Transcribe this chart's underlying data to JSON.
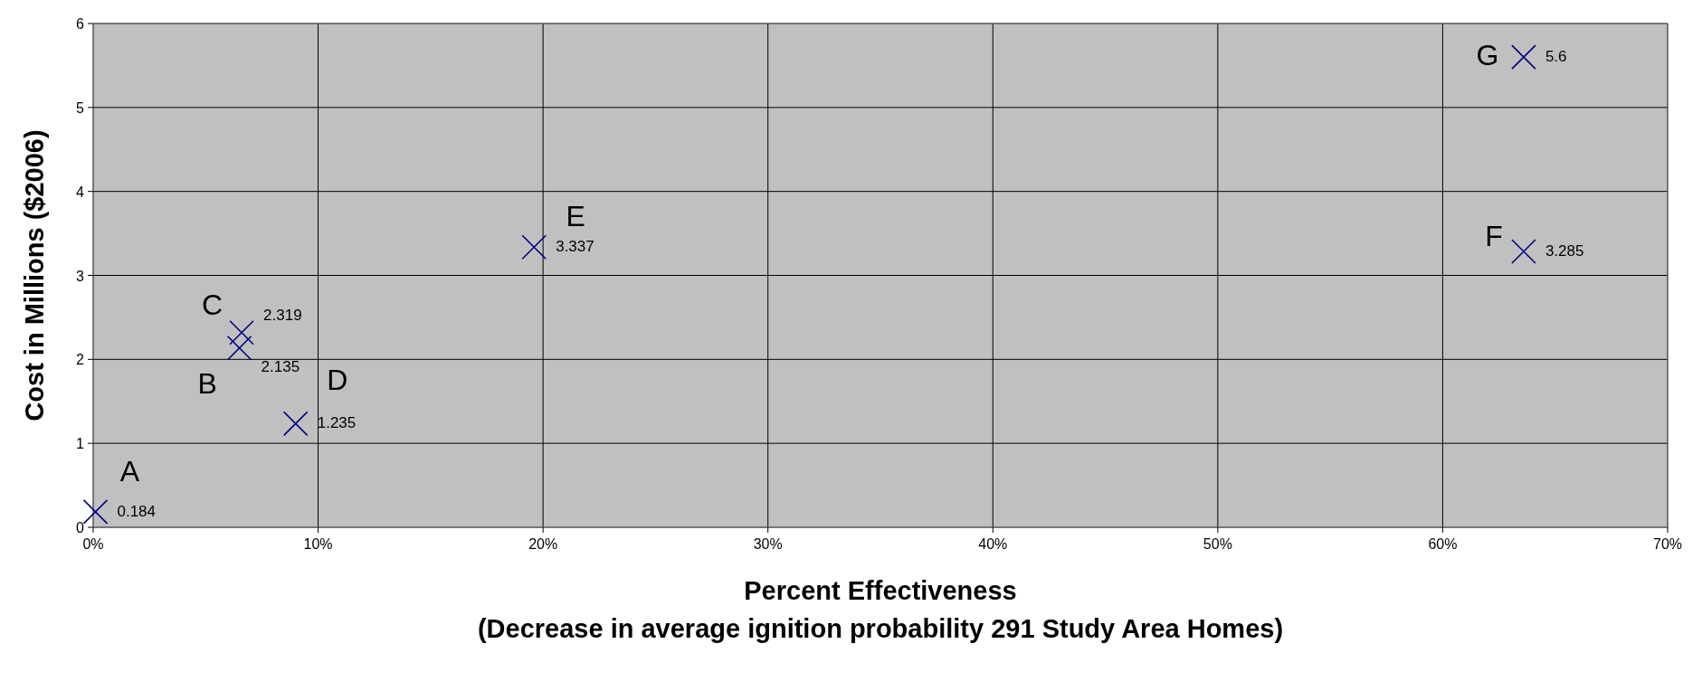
{
  "chart_data": {
    "type": "scatter",
    "xlabel": "Percent Effectiveness\n(Decrease in average ignition probability 291 Study Area Homes)",
    "ylabel": "Cost in Millions ($2006)",
    "series": [
      {
        "color": "#000080",
        "x": [
          0.1,
          6.5,
          6.6,
          9.0,
          19.6,
          63.6,
          63.6
        ],
        "values": [
          0.184,
          2.135,
          2.319,
          1.235,
          3.337,
          3.285,
          5.6
        ]
      }
    ],
    "data_labels": true,
    "marker": "cross",
    "grid": true,
    "xlim": [
      0,
      70
    ],
    "xticks": [
      {
        "value": 0,
        "label": "0%"
      },
      {
        "value": 10,
        "label": "10%"
      },
      {
        "value": 20,
        "label": "20%"
      },
      {
        "value": 30,
        "label": "30%"
      },
      {
        "value": 40,
        "label": "40%"
      },
      {
        "value": 50,
        "label": "50%"
      },
      {
        "value": 60,
        "label": "60%"
      },
      {
        "value": 70,
        "label": "70%"
      }
    ],
    "ylim": [
      0,
      6
    ],
    "yticks": [
      0,
      1,
      2,
      3,
      4,
      5,
      6
    ],
    "annotations": [
      {
        "text": "A",
        "x": 0.1,
        "y": 0.184
      },
      {
        "text": "B",
        "x": 6.6,
        "y": 2.135
      },
      {
        "text": "C",
        "x": 6.5,
        "y": 2.319
      },
      {
        "text": "D",
        "x": 9.0,
        "y": 1.235
      },
      {
        "text": "E",
        "x": 19.6,
        "y": 3.337
      },
      {
        "text": "F",
        "x": 63.6,
        "y": 3.285
      },
      {
        "text": "G",
        "x": 63.6,
        "y": 5.6
      }
    ]
  }
}
